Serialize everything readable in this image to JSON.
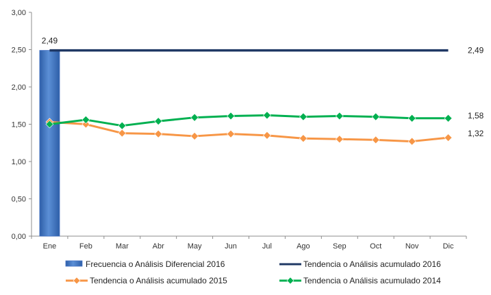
{
  "chart_data": {
    "type": "bar",
    "categories": [
      "Ene",
      "Feb",
      "Mar",
      "Abr",
      "May",
      "Jun",
      "Jul",
      "Ago",
      "Sep",
      "Oct",
      "Nov",
      "Dic"
    ],
    "ylim": [
      0,
      3
    ],
    "yticks": [
      "0,00",
      "0,50",
      "1,00",
      "1,50",
      "2,00",
      "2,50",
      "3,00"
    ],
    "grid": false,
    "legend_position": "bottom",
    "series": [
      {
        "name": "Frecuencia o Análisis Diferencial 2016",
        "kind": "bar",
        "color": "#4472C4",
        "values": [
          2.49,
          null,
          null,
          null,
          null,
          null,
          null,
          null,
          null,
          null,
          null,
          null
        ]
      },
      {
        "name": "Tendencia o Análisis acumulado 2016",
        "kind": "line",
        "color": "#1F3864",
        "marker": "none",
        "values": [
          2.49,
          2.49,
          2.49,
          2.49,
          2.49,
          2.49,
          2.49,
          2.49,
          2.49,
          2.49,
          2.49,
          2.49
        ]
      },
      {
        "name": "Tendencia o Análisis acumulado 2015",
        "kind": "line",
        "color": "#F79646",
        "marker": "diamond",
        "values": [
          1.53,
          1.5,
          1.38,
          1.37,
          1.34,
          1.37,
          1.35,
          1.31,
          1.3,
          1.29,
          1.27,
          1.32
        ]
      },
      {
        "name": "Tendencia o Análisis acumulado 2014",
        "kind": "line",
        "color": "#00B050",
        "marker": "diamond",
        "values": [
          1.5,
          1.56,
          1.48,
          1.54,
          1.59,
          1.61,
          1.62,
          1.6,
          1.61,
          1.6,
          1.58,
          1.58
        ]
      }
    ],
    "data_labels": {
      "bar_top": "2,49",
      "line_2016_end": "2,49",
      "line_2014_end": "1,58",
      "line_2015_end": "1,32"
    }
  }
}
